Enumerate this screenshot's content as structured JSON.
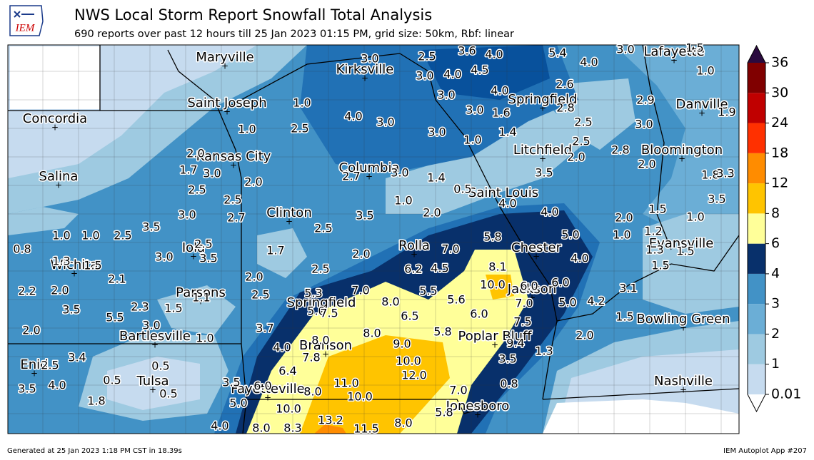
{
  "header": {
    "logo": "IEM",
    "title": "NWS Local Storm Report Snowfall Total Analysis",
    "subtitle": "690 reports over past 12 hours till 25 Jan 2023 01:15 PM, grid size: 50km, Rbf: linear"
  },
  "colorbar": {
    "levels": [
      0.01,
      1,
      2,
      3,
      4,
      6,
      8,
      12,
      18,
      24,
      30,
      36
    ],
    "colors": [
      "#c6dbef",
      "#9ecae1",
      "#6baed6",
      "#4292c6",
      "#08306b",
      "#ffff99",
      "#ffc400",
      "#ff8c00",
      "#ff3000",
      "#c00000",
      "#800000"
    ],
    "under_color": "#ffffff",
    "over_color": "#2a0a3e"
  },
  "cities": [
    "Maryville",
    "Kirksville",
    "Lafayette",
    "Saint Joseph",
    "Springfield",
    "Danville",
    "Concordia",
    "Litchfield",
    "Kansas City",
    "Bloomington",
    "Salina",
    "Columbia",
    "Saint Louis",
    "Clinton",
    "Evansville",
    "Iola",
    "Rolla",
    "Chester",
    "Wichita",
    "Jackson",
    "Parsons",
    "Springfield",
    "Bowling Green",
    "Bartlesville",
    "Poplar Bluff",
    "Branson",
    "Enid",
    "Tulsa",
    "Nashville",
    "Fayetteville",
    "Jonesboro"
  ],
  "reports": [
    "3.0",
    "2.5",
    "3.6",
    "4.0",
    "5.4",
    "4.0",
    "3.0",
    "1.5",
    "3.0",
    "4.0",
    "4.5",
    "1.0",
    "1.0",
    "3.0",
    "4.0",
    "2.6",
    "2.9",
    "4.0",
    "3.0",
    "3.0",
    "1.6",
    "2.8",
    "1.0",
    "2.5",
    "3.0",
    "1.0",
    "1.4",
    "2.5",
    "3.0",
    "1.9",
    "2.0",
    "2.5",
    "2.0",
    "2.8",
    "1.7",
    "3.0",
    "2.0",
    "2.7",
    "3.0",
    "1.4",
    "2.0",
    "1.8",
    "3.3",
    "2.5",
    "2.5",
    "1.0",
    "0.5",
    "3.5",
    "3.5",
    "4.0",
    "4.0",
    "3.0",
    "2.7",
    "2.0",
    "3.5",
    "2.0",
    "1.5",
    "1.0",
    "1.0",
    "1.0",
    "2.5",
    "3.5",
    "2.5",
    "2.5",
    "5.8",
    "5.0",
    "1.0",
    "1.2",
    "0.8",
    "1.7",
    "2.0",
    "7.0",
    "3.0",
    "3.5",
    "4.0",
    "1.3",
    "1.5",
    "1.3",
    "1.5",
    "2.5",
    "6.2",
    "4.5",
    "8.1",
    "1.5",
    "2.1",
    "2.0",
    "2.2",
    "2.0",
    "7.0",
    "5.5",
    "10.0",
    "6.0",
    "6.0",
    "3.1",
    "1.1",
    "2.5",
    "5.3",
    "8.0",
    "5.6",
    "7.0",
    "5.0",
    "4.2",
    "3.5",
    "5.5",
    "2.3",
    "1.5",
    "3.0",
    "5.0",
    "7.5",
    "6.5",
    "6.0",
    "1.5",
    "3.7",
    "7.5",
    "8.0",
    "8.0",
    "5.8",
    "2.0",
    "2.0",
    "1.0",
    "9.0",
    "4.0",
    "9.4",
    "1.3",
    "3.4",
    "7.8",
    "10.0",
    "3.5",
    "2.5",
    "0.5",
    "6.4",
    "12.0",
    "11.0",
    "0.5",
    "3.5",
    "6.0",
    "7.0",
    "0.8",
    "3.5",
    "4.0",
    "8.0",
    "10.0",
    "0.5",
    "1.8",
    "5.0",
    "10.0",
    "5.8",
    "13.2",
    "8.0",
    "8.3",
    "11.5",
    "8.0",
    "4.0"
  ],
  "footer": {
    "left": "Generated at 25 Jan 2023 1:18 PM CST in 18.39s",
    "right": "IEM Autoplot App #207"
  }
}
